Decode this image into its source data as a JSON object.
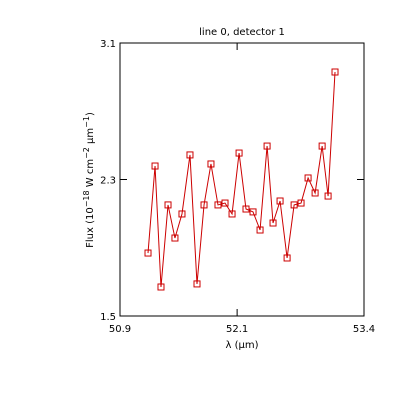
{
  "chart_data": {
    "type": "line",
    "title": "line 0, detector 1",
    "x_label": "λ (μm)",
    "y_label_parts": [
      "Flux (10",
      "−18",
      " W cm",
      "−2",
      " μm",
      "−1",
      ")"
    ],
    "x": [
      51.187,
      51.259,
      51.32,
      51.392,
      51.463,
      51.535,
      51.617,
      51.689,
      51.761,
      51.832,
      51.904,
      51.976,
      52.048,
      52.12,
      52.191,
      52.263,
      52.335,
      52.407,
      52.468,
      52.54,
      52.612,
      52.684,
      52.755,
      52.827,
      52.899,
      52.971,
      53.032,
      53.103
    ],
    "series": [
      {
        "color": "#cc0000",
        "values": [
          1.869,
          2.379,
          1.67,
          2.151,
          1.957,
          2.098,
          2.444,
          1.688,
          2.151,
          2.391,
          2.151,
          2.162,
          2.098,
          2.455,
          2.127,
          2.11,
          2.004,
          2.496,
          2.045,
          2.174,
          1.84,
          2.151,
          2.162,
          2.309,
          2.221,
          2.496,
          2.203,
          2.93
        ]
      }
    ],
    "xlim": [
      50.9,
      53.4
    ],
    "xticks": [
      50.9,
      52.1,
      53.4
    ],
    "ylim": [
      1.5,
      3.1
    ],
    "yticks": [
      1.5,
      2.3,
      3.1
    ]
  }
}
